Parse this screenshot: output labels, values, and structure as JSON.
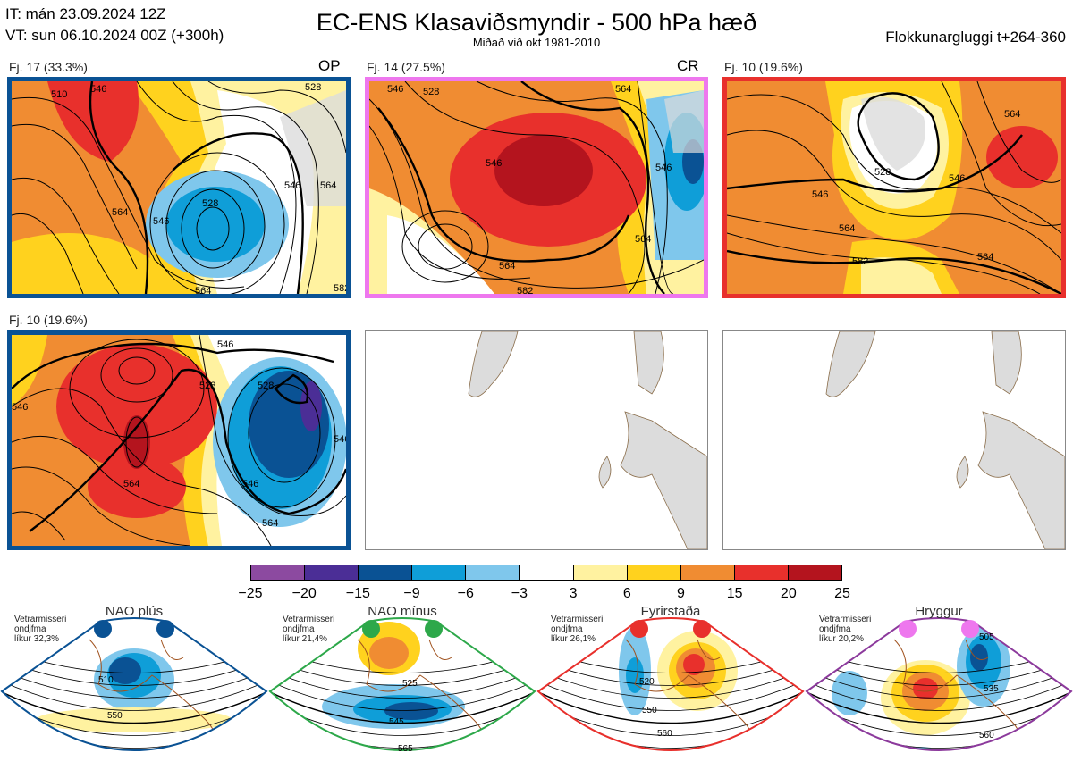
{
  "header": {
    "it_line": "IT: mán 23.09.2024 12Z",
    "vt_line": "VT: sun 06.10.2024 00Z  (+300h)",
    "title": "EC-ENS Klasaviðsmyndir - 500 hPa hæð",
    "subtitle": "Miðað við okt 1981-2010",
    "window": "Flokkunargluggi t+264-360"
  },
  "panels": [
    {
      "label": "Fj. 17 (33.3%)",
      "tag": "OP",
      "border": "#0a5294",
      "contours": [
        "510",
        "528",
        "546",
        "564",
        "546",
        "564",
        "546",
        "528",
        "564",
        "582"
      ]
    },
    {
      "label": "Fj. 14 (27.5%)",
      "tag": "CR",
      "border": "#ee77ee",
      "contours": [
        "528",
        "546",
        "546",
        "564",
        "546",
        "564",
        "564",
        "582"
      ]
    },
    {
      "label": "Fj. 10 (19.6%)",
      "tag": "",
      "border": "#e8302c",
      "contours": [
        "546",
        "528",
        "546",
        "564",
        "564",
        "582",
        "564"
      ]
    },
    {
      "label": "Fj. 10 (19.6%)",
      "tag": "",
      "border": "#0a5294",
      "contours": [
        "546",
        "546",
        "528",
        "528",
        "564",
        "546",
        "546",
        "564"
      ]
    }
  ],
  "colorbar": {
    "colors": [
      "#8c4aa0",
      "#4b2e96",
      "#0a5294",
      "#0f9ed8",
      "#7fc7ec",
      "#ffffff",
      "#fff2a0",
      "#ffd21e",
      "#f08c32",
      "#e8302c",
      "#b4141e"
    ],
    "ticks": [
      "−25",
      "−20",
      "−15",
      "−9",
      "−6",
      "−3",
      "3",
      "6",
      "9",
      "15",
      "20",
      "25"
    ]
  },
  "regimes": [
    {
      "name": "NAO plús",
      "info": [
        "Vetrarmisseri",
        "ondjfma",
        "líkur 32,3%"
      ],
      "border": "#0a5294",
      "dot": "#0a5294",
      "contours": [
        "510",
        "550"
      ]
    },
    {
      "name": "NAO mínus",
      "info": [
        "Vetrarmisseri",
        "ondjfma",
        "líkur 21,4%"
      ],
      "border": "#2da84a",
      "dot": "#2da84a",
      "contours": [
        "525",
        "545",
        "565"
      ]
    },
    {
      "name": "Fyrirstaða",
      "info": [
        "Vetrarmisseri",
        "ondjfma",
        "líkur 26,1%"
      ],
      "border": "#e8302c",
      "dot": "#e8302c",
      "contours": [
        "520",
        "550",
        "560"
      ]
    },
    {
      "name": "Hryggur",
      "info": [
        "Vetrarmisseri",
        "ondjfma",
        "líkur 20,2%"
      ],
      "border": "#8c3a9c",
      "dot": "#ee77ee",
      "contours": [
        "505",
        "535",
        "560"
      ]
    }
  ]
}
